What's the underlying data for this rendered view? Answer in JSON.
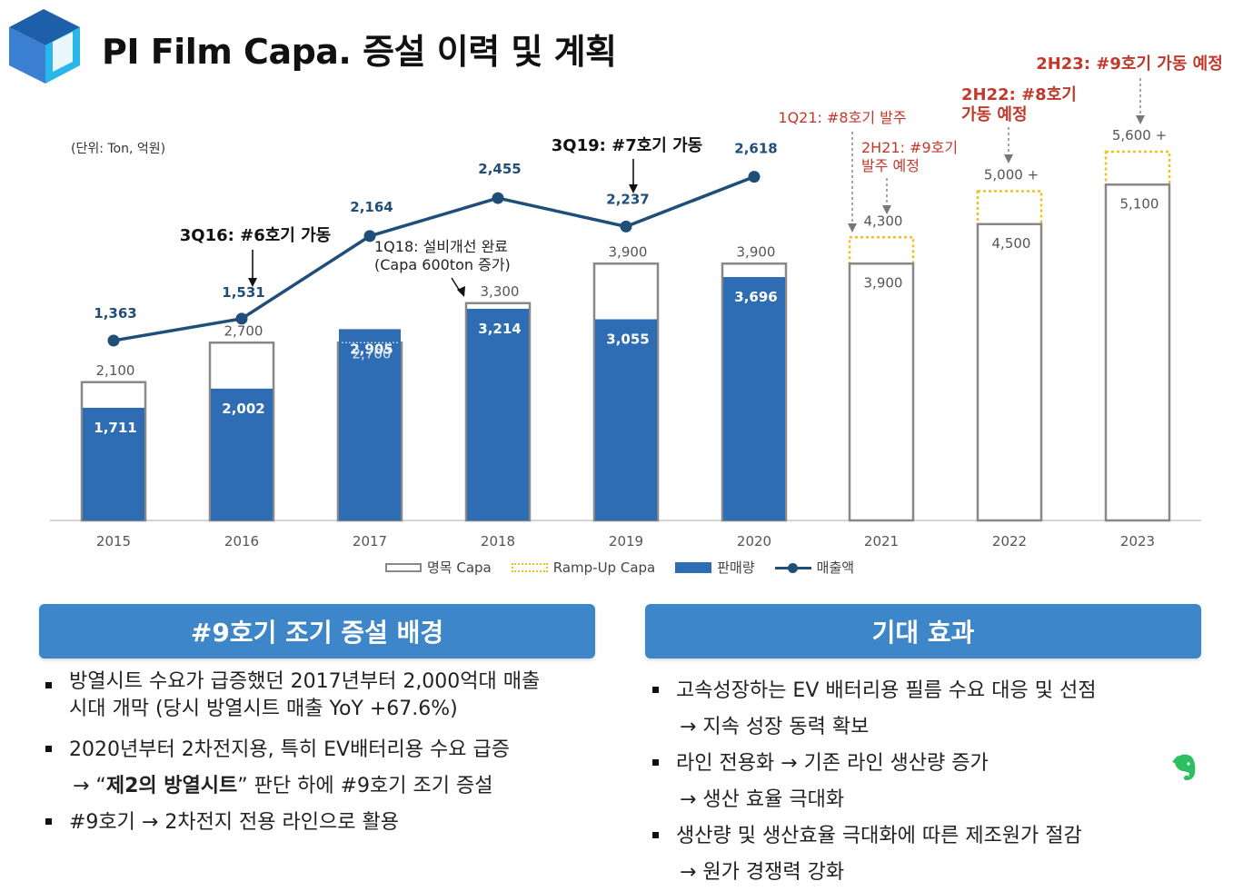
{
  "title": "PI Film Capa. 증설 이력 및 계획",
  "unit_label": "(단위: Ton, 억원)",
  "colors": {
    "sales_bar": "#2e6db4",
    "revenue_line": "#1f4e79",
    "capa_outline": "#888888",
    "rampup_outline": "#f0c020",
    "annotation_red": "#c0392b",
    "panel_header": "#3d86c9"
  },
  "chart_data": {
    "type": "bar",
    "categories": [
      "2015",
      "2016",
      "2017",
      "2018",
      "2019",
      "2020",
      "2021",
      "2022",
      "2023"
    ],
    "series": [
      {
        "name": "명목 Capa",
        "values": [
          2100,
          2700,
          2700,
          3300,
          3900,
          3900,
          3900,
          4500,
          5100
        ],
        "labels": [
          "2,100",
          "2,700",
          "2,700",
          "3,300",
          "3,900",
          "3,900",
          "3,900",
          "4,500",
          "5,100"
        ]
      },
      {
        "name": "Ramp-Up Capa",
        "values": [
          null,
          null,
          null,
          null,
          null,
          null,
          4300,
          5000,
          5600
        ],
        "labels": [
          "",
          "",
          "",
          "",
          "",
          "",
          "4,300",
          "5,000 +",
          "5,600 +"
        ]
      },
      {
        "name": "판매량",
        "values": [
          1711,
          2002,
          2905,
          3214,
          3055,
          3696,
          null,
          null,
          null
        ],
        "labels": [
          "1,711",
          "2,002",
          "2,905",
          "3,214",
          "3,055",
          "3,696",
          "",
          "",
          ""
        ]
      },
      {
        "name": "매출액",
        "type": "line",
        "values": [
          1363,
          1531,
          2164,
          2455,
          2237,
          2618,
          null,
          null,
          null
        ],
        "labels": [
          "1,363",
          "1,531",
          "2,164",
          "2,455",
          "2,237",
          "2,618",
          "",
          "",
          ""
        ]
      }
    ],
    "annotations": [
      {
        "text": "3Q16: #6호기 가동",
        "category": "2016",
        "style": "bold"
      },
      {
        "text": "1Q18: 설비개선 완료",
        "text2": "(Capa 600ton 증가)",
        "category": "2018",
        "style": "normal"
      },
      {
        "text": "3Q19: #7호기 가동",
        "category": "2019",
        "style": "bold"
      },
      {
        "text": "1Q21: #8호기 발주",
        "category": "2021",
        "style": "red"
      },
      {
        "text": "2H21: #9호기",
        "text2": "발주 예정",
        "category": "2021",
        "style": "red"
      },
      {
        "text": "2H22: #8호기",
        "text2": "가동 예정",
        "category": "2022",
        "style": "red-bold"
      },
      {
        "text": "2H23: #9호기 가동 예정",
        "category": "2023",
        "style": "red-bold"
      }
    ],
    "legend": [
      "명목 Capa",
      "Ramp-Up Capa",
      "판매량",
      "매출액"
    ],
    "legend_position": "bottom",
    "grid": false
  },
  "panels": {
    "left": {
      "title": "#9호기 조기 증설 배경",
      "bullets": [
        {
          "l1": "방열시트 수요가 급증했던 2017년부터 2,000억대 매출",
          "l2": "시대 개막 (당시 방열시트 매출 YoY +67.6%)"
        },
        {
          "l1": "2020년부터 2차전지용, 특히 EV배터리용 수요 급증",
          "l2a": "→ “",
          "l2b": "제2의 방열시트",
          "l2c": "” 판단 하에 #9호기 조기 증설"
        },
        {
          "l1": "#9호기 → 2차전지 전용 라인으로 활용"
        }
      ]
    },
    "right": {
      "title": "기대 효과",
      "bullets": [
        {
          "l1": "고속성장하는 EV 배터리용 필름 수요 대응 및 선점",
          "l2": "→ 지속 성장 동력 확보"
        },
        {
          "l1": "라인 전용화 → 기존 라인 생산량 증가",
          "l2": "→ 생산 효율 극대화"
        },
        {
          "l1": "생산량 및 생산효율 극대화에 따른 제조원가 절감",
          "l2": "→ 원가 경쟁력 강화"
        }
      ]
    }
  }
}
